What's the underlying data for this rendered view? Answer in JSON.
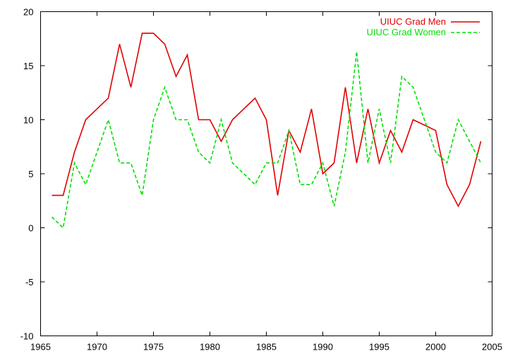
{
  "chart_data": {
    "type": "line",
    "title": "",
    "xlabel": "",
    "ylabel": "",
    "xlim": [
      1965,
      2005
    ],
    "ylim": [
      -10,
      20
    ],
    "xticks": [
      1965,
      1970,
      1975,
      1980,
      1985,
      1990,
      1995,
      2000,
      2005
    ],
    "yticks": [
      -10,
      -5,
      0,
      5,
      10,
      15,
      20
    ],
    "grid": false,
    "legend_position": "top-right",
    "x": [
      1966,
      1967,
      1968,
      1969,
      1970,
      1971,
      1972,
      1973,
      1974,
      1975,
      1976,
      1977,
      1978,
      1979,
      1980,
      1981,
      1982,
      1983,
      1984,
      1985,
      1986,
      1987,
      1988,
      1989,
      1990,
      1991,
      1992,
      1993,
      1994,
      1995,
      1996,
      1997,
      1998,
      1999,
      2000,
      2001,
      2002,
      2003,
      2004
    ],
    "series": [
      {
        "name": "UIUC Grad Men",
        "color": "#e00000",
        "dash": "solid",
        "values": [
          3,
          3,
          7,
          10,
          11,
          12,
          17,
          13,
          18,
          18,
          17,
          14,
          16,
          10,
          10,
          8,
          10,
          11,
          12,
          10,
          3,
          9,
          7,
          11,
          5,
          6,
          13,
          6,
          11,
          6,
          9,
          7,
          10,
          9.5,
          9,
          4,
          2,
          4,
          8
        ]
      },
      {
        "name": "UIUC Grad Women",
        "color": "#00e000",
        "dash": "dashed",
        "values": [
          1,
          0,
          6,
          4,
          7,
          10,
          6,
          6,
          3,
          10,
          13,
          10,
          10,
          7,
          6,
          10,
          6,
          5,
          4,
          6,
          6,
          9,
          4,
          4,
          6,
          2,
          7,
          16.3,
          6,
          11,
          6,
          14,
          13,
          10,
          7,
          6,
          10,
          8,
          6
        ]
      }
    ]
  }
}
